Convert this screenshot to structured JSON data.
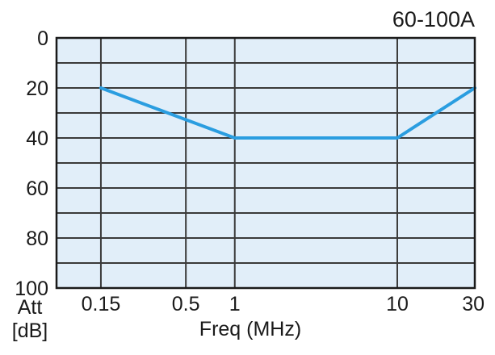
{
  "chart_data": {
    "type": "line",
    "title": "60-100A",
    "xlabel": "Freq (MHz)",
    "ylabel": "Att",
    "ylabel_unit": "[dB]",
    "x_scale": "log",
    "xlim": [
      0.08,
      30
    ],
    "ylim": [
      0,
      100
    ],
    "y_inverted": true,
    "x_ticks": [
      0.15,
      0.5,
      1,
      10,
      30
    ],
    "x_tick_labels": [
      "0.15",
      "0.5",
      "1",
      "10",
      "30"
    ],
    "y_ticks": [
      0,
      20,
      40,
      60,
      80,
      100
    ],
    "y_tick_labels": [
      "0",
      "20",
      "40",
      "60",
      "80",
      "100"
    ],
    "grid": true,
    "series": [
      {
        "x": [
          0.15,
          1,
          10,
          30
        ],
        "y": [
          20,
          40,
          40,
          20
        ]
      }
    ]
  },
  "colors": {
    "plot_background": "#e1eef9",
    "grid_line": "#3a3a3a",
    "frame": "#1a1a1a",
    "series_line": "#2a9de0"
  }
}
